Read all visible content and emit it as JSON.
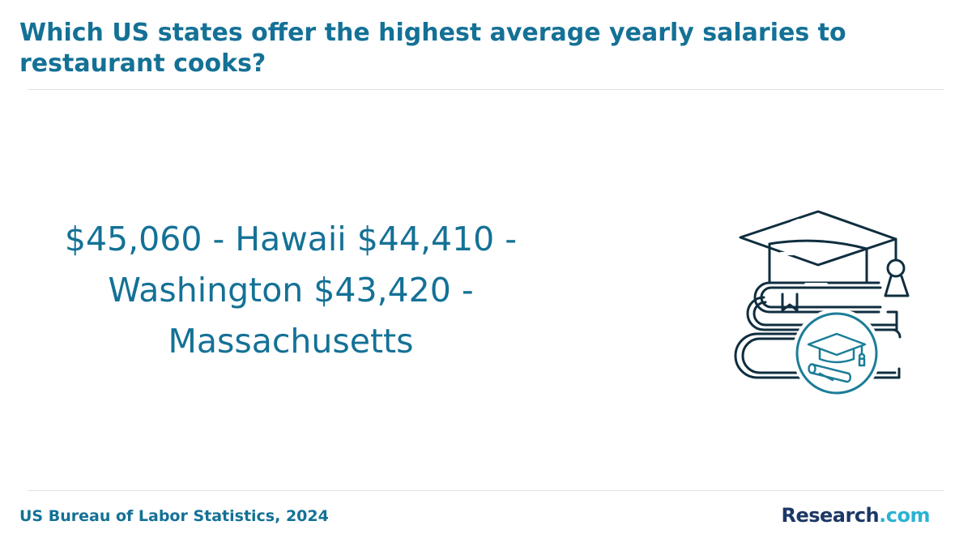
{
  "header": {
    "title": "Which US states offer the highest average yearly salaries to restaurant cooks?"
  },
  "main": {
    "statement": "$45,060 - Hawaii $44,410 - Washington $43,420 - Massachusetts",
    "illustration_icon": "books-graduation-cap-icon"
  },
  "footer": {
    "source": "US Bureau of Labor Statistics, 2024",
    "logo": {
      "name": "Research",
      "dot": ".",
      "tld": "com"
    }
  },
  "colors": {
    "title": "#147196",
    "stat_text": "#147196",
    "source": "#147196",
    "icon_stroke": "#0f2e3f",
    "icon_accent": "#1b7d97",
    "logo_primary": "#1c3766",
    "logo_accent": "#2bb2d3",
    "divider": "#e3e3e3"
  }
}
